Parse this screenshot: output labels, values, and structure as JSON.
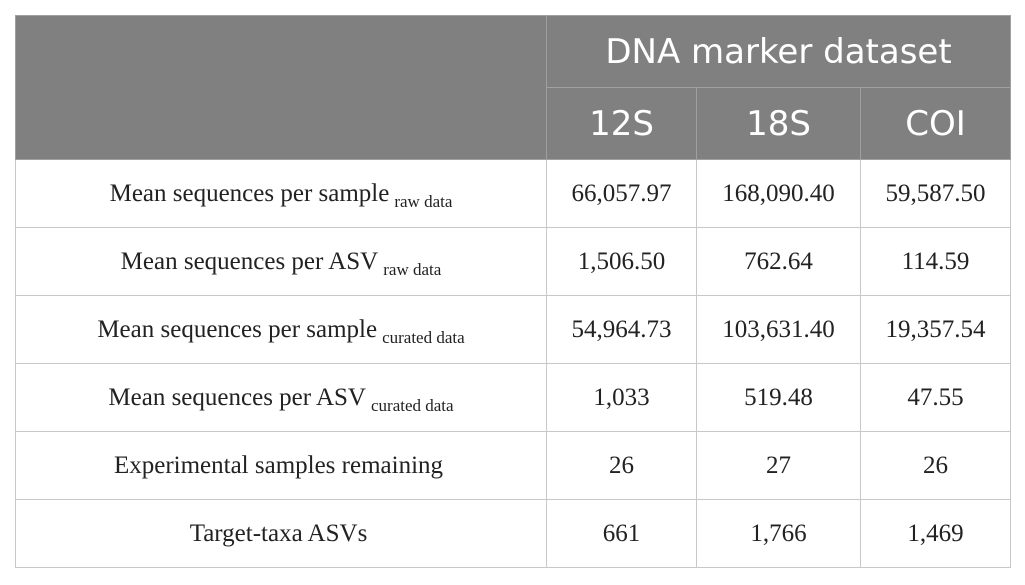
{
  "header": {
    "group_title": "DNA marker dataset",
    "columns": [
      "12S",
      "18S",
      "COI"
    ]
  },
  "rows": [
    {
      "label": "Mean sequences per sample",
      "sub": "raw data",
      "values": [
        "66,057.97",
        "168,090.40",
        "59,587.50"
      ]
    },
    {
      "label": "Mean sequences per ASV",
      "sub": "raw data",
      "values": [
        "1,506.50",
        "762.64",
        "114.59"
      ]
    },
    {
      "label": "Mean sequences per sample",
      "sub": "curated data",
      "values": [
        "54,964.73",
        "103,631.40",
        "19,357.54"
      ]
    },
    {
      "label": "Mean sequences per ASV",
      "sub": "curated data",
      "values": [
        "1,033",
        "519.48",
        "47.55"
      ]
    },
    {
      "label": "Experimental samples remaining",
      "sub": "",
      "values": [
        "26",
        "27",
        "26"
      ]
    },
    {
      "label": "Target-taxa ASVs",
      "sub": "",
      "values": [
        "661",
        "1,766",
        "1,469"
      ]
    }
  ]
}
